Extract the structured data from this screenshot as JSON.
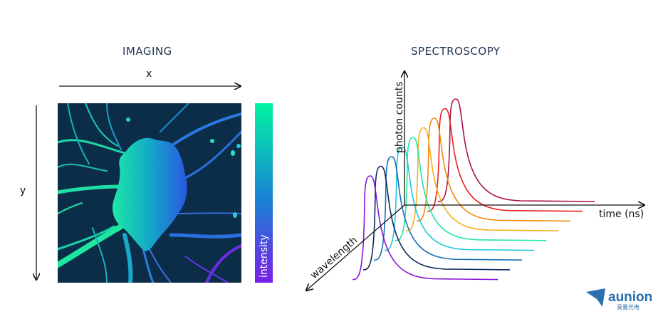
{
  "imaging": {
    "title": "IMAGING",
    "x_label": "x",
    "y_label": "y",
    "colorbar_label": "intensity",
    "colorbar_colors": [
      "#00f5a0",
      "#1a7fd6",
      "#7a1ee8"
    ],
    "background_color": "#0c2d48"
  },
  "spectroscopy": {
    "title": "SPECTROSCOPY",
    "x_label": "time (ns)",
    "y_label": "photon counts",
    "z_label": "wavelength",
    "series_colors": [
      "#8a16d8",
      "#0d2a5c",
      "#1a6fb5",
      "#19c8e0",
      "#1ee8a0",
      "#f2b11b",
      "#f28a12",
      "#e82020",
      "#a8124a"
    ]
  },
  "logo": {
    "name": "aunion",
    "subtitle": "昊量光电"
  }
}
